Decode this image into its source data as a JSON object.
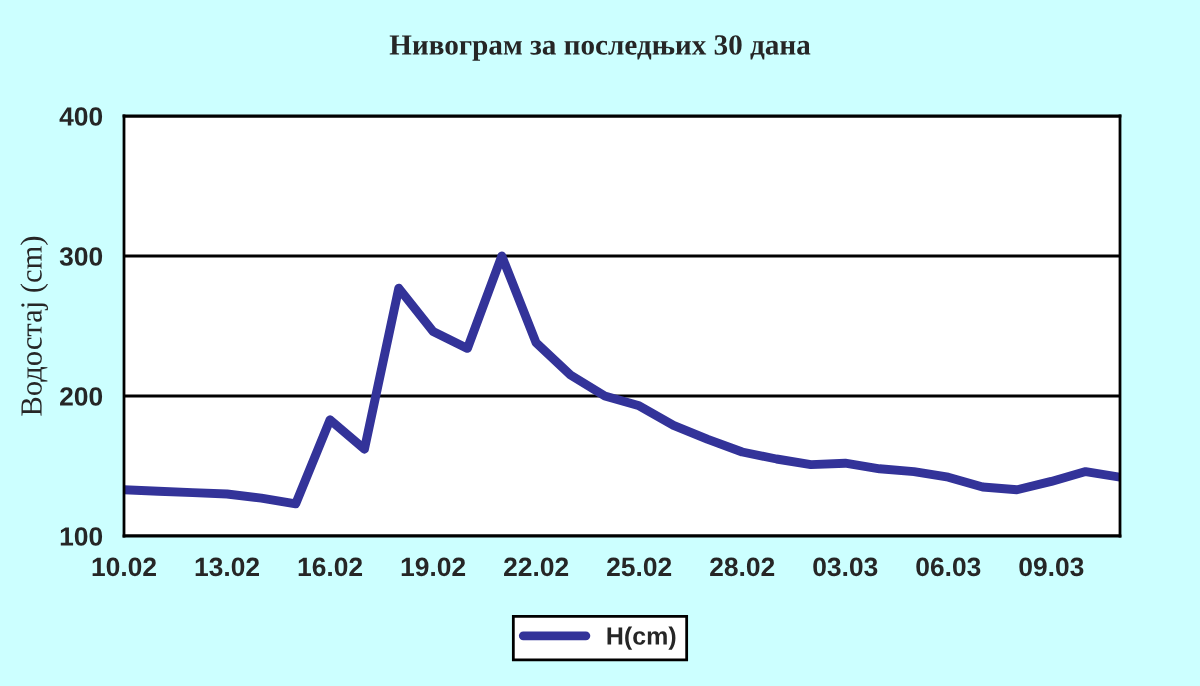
{
  "chart_data": {
    "type": "line",
    "title": "Нивограм за последњих 30 дана",
    "ylabel": "Водостај (cm)",
    "categories": [
      "10.02",
      null,
      null,
      "13.02",
      null,
      null,
      "16.02",
      null,
      null,
      "19.02",
      null,
      null,
      "22.02",
      null,
      null,
      "25.02",
      null,
      null,
      "28.02",
      null,
      null,
      "03.03",
      null,
      null,
      "06.03",
      null,
      null,
      "09.03",
      null,
      null
    ],
    "series": [
      {
        "name": "H(cm)",
        "color": "#333399",
        "values": [
          133,
          132,
          131,
          130,
          127,
          123,
          183,
          162,
          277,
          246,
          234,
          300,
          238,
          215,
          200,
          193,
          179,
          169,
          160,
          155,
          151,
          152,
          148,
          146,
          142,
          135,
          133,
          139,
          146,
          142
        ]
      }
    ],
    "ylim": [
      100,
      400
    ],
    "yticks": [
      100,
      200,
      300,
      400
    ],
    "grid": "y",
    "legend": "bottom",
    "line_style": "solid",
    "marker": "none"
  }
}
